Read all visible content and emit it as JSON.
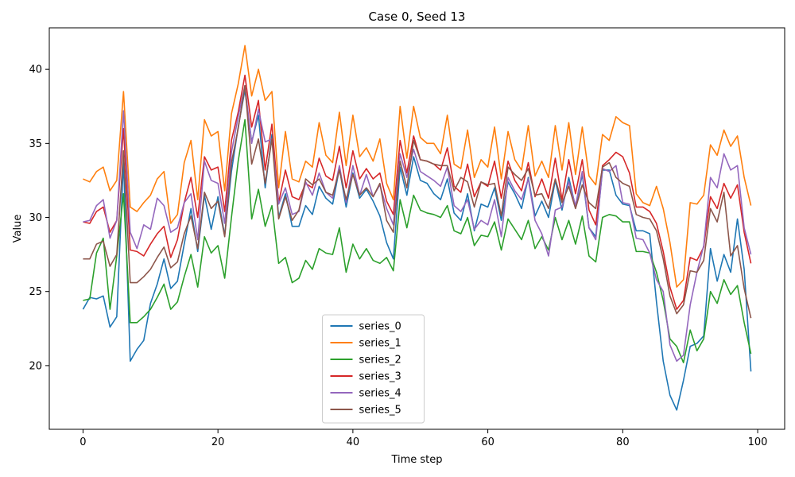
{
  "chart_data": {
    "type": "line",
    "title": "Case 0, Seed 13",
    "xlabel": "Time step",
    "ylabel": "Value",
    "xlim": [
      -5,
      104
    ],
    "ylim": [
      15.7,
      42.8
    ],
    "xticks": [
      0,
      20,
      40,
      60,
      80,
      100
    ],
    "yticks": [
      20,
      25,
      30,
      35,
      40
    ],
    "grid": false,
    "legend_position": "lower-center",
    "x": [
      0,
      1,
      2,
      3,
      4,
      5,
      6,
      7,
      8,
      9,
      10,
      11,
      12,
      13,
      14,
      15,
      16,
      17,
      18,
      19,
      20,
      21,
      22,
      23,
      24,
      25,
      26,
      27,
      28,
      29,
      30,
      31,
      32,
      33,
      34,
      35,
      36,
      37,
      38,
      39,
      40,
      41,
      42,
      43,
      44,
      45,
      46,
      47,
      48,
      49,
      50,
      51,
      52,
      53,
      54,
      55,
      56,
      57,
      58,
      59,
      60,
      61,
      62,
      63,
      64,
      65,
      66,
      67,
      68,
      69,
      70,
      71,
      72,
      73,
      74,
      75,
      76,
      77,
      78,
      79,
      80,
      81,
      82,
      83,
      84,
      85,
      86,
      87,
      88,
      89,
      90,
      91,
      92,
      93,
      94,
      95,
      96,
      97,
      98,
      99
    ],
    "series": [
      {
        "name": "series_0",
        "color": "#1f77b4",
        "values": [
          23.8,
          24.6,
          24.5,
          24.7,
          22.6,
          23.3,
          33.8,
          20.3,
          21.1,
          21.7,
          24.2,
          25.5,
          27.2,
          25.2,
          25.7,
          28.2,
          30.6,
          27.7,
          31.5,
          29.2,
          31.4,
          28.8,
          33.1,
          36.1,
          38.6,
          35.1,
          36.9,
          32.0,
          35.6,
          30.0,
          31.6,
          29.4,
          29.4,
          30.8,
          30.2,
          32.1,
          31.3,
          30.9,
          33.3,
          30.7,
          33.0,
          31.3,
          31.9,
          31.1,
          30.1,
          28.3,
          27.2,
          33.4,
          31.5,
          34.1,
          32.5,
          32.3,
          31.6,
          31.2,
          32.6,
          30.3,
          29.8,
          31.6,
          29.1,
          30.9,
          30.7,
          32.0,
          29.8,
          32.4,
          31.6,
          30.6,
          32.7,
          30.1,
          31.1,
          30.0,
          32.5,
          30.5,
          32.7,
          30.7,
          32.9,
          29.3,
          28.7,
          33.2,
          33.2,
          31.5,
          30.9,
          30.8,
          29.1,
          29.1,
          28.9,
          24.3,
          20.3,
          18.0,
          17.0,
          19.0,
          21.3,
          21.5,
          22.0,
          27.9,
          25.7,
          27.5,
          26.3,
          29.9,
          26.5,
          19.6
        ]
      },
      {
        "name": "series_1",
        "color": "#ff7f0e",
        "values": [
          32.6,
          32.4,
          33.1,
          33.4,
          31.8,
          32.5,
          38.5,
          30.7,
          30.4,
          31.0,
          31.5,
          32.6,
          33.1,
          29.6,
          30.2,
          33.7,
          35.2,
          31.2,
          36.6,
          35.5,
          35.8,
          31.8,
          37.0,
          39.0,
          41.6,
          38.2,
          40.0,
          37.9,
          38.5,
          32.0,
          35.8,
          32.6,
          32.4,
          33.8,
          33.4,
          36.4,
          34.2,
          33.7,
          37.1,
          33.5,
          36.9,
          34.1,
          34.7,
          33.8,
          35.3,
          32.3,
          31.2,
          37.5,
          34.0,
          37.5,
          35.4,
          35.0,
          35.0,
          34.3,
          36.9,
          33.6,
          33.3,
          35.9,
          32.7,
          33.9,
          33.4,
          36.1,
          32.6,
          35.8,
          33.9,
          33.2,
          36.2,
          32.8,
          33.8,
          32.7,
          36.2,
          33.2,
          36.4,
          32.9,
          36.1,
          32.8,
          32.2,
          35.6,
          35.2,
          36.8,
          36.4,
          36.2,
          31.6,
          31.0,
          30.8,
          32.1,
          30.6,
          28.3,
          25.3,
          25.8,
          31.0,
          30.9,
          31.5,
          34.9,
          34.2,
          35.9,
          34.8,
          35.5,
          32.7,
          30.8
        ]
      },
      {
        "name": "series_2",
        "color": "#2ca02c",
        "values": [
          24.4,
          24.5,
          27.6,
          28.6,
          23.8,
          27.4,
          31.6,
          22.9,
          22.9,
          23.3,
          23.8,
          24.6,
          25.5,
          23.8,
          24.3,
          26.0,
          27.5,
          25.3,
          28.7,
          27.6,
          28.1,
          25.9,
          30.0,
          33.8,
          36.6,
          29.9,
          31.9,
          29.4,
          30.8,
          26.9,
          27.3,
          25.6,
          25.9,
          27.1,
          26.5,
          27.9,
          27.6,
          27.5,
          29.3,
          26.3,
          28.2,
          27.2,
          27.9,
          27.1,
          26.9,
          27.3,
          26.4,
          31.2,
          29.3,
          31.5,
          30.5,
          30.3,
          30.2,
          30.0,
          30.8,
          29.1,
          28.9,
          30.0,
          28.1,
          28.8,
          28.7,
          29.7,
          27.8,
          29.9,
          29.2,
          28.5,
          29.8,
          27.9,
          28.7,
          27.8,
          30.0,
          28.5,
          29.8,
          28.2,
          30.1,
          27.4,
          27.0,
          30.0,
          30.2,
          30.1,
          29.7,
          29.7,
          27.7,
          27.7,
          27.6,
          26.3,
          24.4,
          21.8,
          21.3,
          20.2,
          22.4,
          21.0,
          21.8,
          25.0,
          24.2,
          25.8,
          24.8,
          25.4,
          22.9,
          20.8
        ]
      },
      {
        "name": "series_3",
        "color": "#d62728",
        "values": [
          29.7,
          29.6,
          30.4,
          30.7,
          29.0,
          29.8,
          36.0,
          27.8,
          27.7,
          27.4,
          28.2,
          28.9,
          29.4,
          27.3,
          28.5,
          31.0,
          32.7,
          30.0,
          34.1,
          33.2,
          33.4,
          30.4,
          35.2,
          37.1,
          39.6,
          36.1,
          37.9,
          33.2,
          36.3,
          31.0,
          33.2,
          31.4,
          31.2,
          32.3,
          32.0,
          34.0,
          32.8,
          32.5,
          34.8,
          32.0,
          34.5,
          32.6,
          33.3,
          32.6,
          33.0,
          31.1,
          30.2,
          35.2,
          33.0,
          35.5,
          33.9,
          33.8,
          33.6,
          33.2,
          34.7,
          32.1,
          31.7,
          33.6,
          31.4,
          32.4,
          32.1,
          33.8,
          31.3,
          33.8,
          32.5,
          31.8,
          33.7,
          31.4,
          32.6,
          31.3,
          34.0,
          31.2,
          33.9,
          31.6,
          33.9,
          30.5,
          29.5,
          33.5,
          33.9,
          34.4,
          34.1,
          33.0,
          30.7,
          30.7,
          30.4,
          29.6,
          27.7,
          25.3,
          23.8,
          24.4,
          27.3,
          27.1,
          28.0,
          31.4,
          30.6,
          32.3,
          31.3,
          32.2,
          29.0,
          26.9
        ]
      },
      {
        "name": "series_4",
        "color": "#9467bd",
        "values": [
          29.7,
          29.8,
          30.8,
          31.2,
          28.6,
          29.8,
          37.2,
          29.0,
          27.9,
          29.5,
          29.2,
          31.3,
          30.8,
          29.0,
          29.3,
          31.0,
          31.6,
          28.5,
          33.8,
          32.5,
          32.3,
          29.6,
          34.4,
          36.8,
          38.9,
          35.0,
          37.3,
          35.1,
          35.3,
          30.9,
          32.0,
          30.2,
          30.4,
          32.4,
          31.5,
          33.0,
          31.7,
          31.3,
          33.5,
          31.0,
          33.5,
          31.5,
          32.9,
          31.4,
          32.2,
          30.6,
          29.5,
          34.3,
          32.7,
          34.6,
          33.1,
          32.8,
          32.5,
          32.1,
          33.4,
          30.8,
          30.4,
          31.2,
          29.2,
          29.8,
          29.5,
          31.2,
          28.7,
          32.7,
          31.8,
          31.2,
          32.6,
          29.8,
          28.9,
          27.4,
          30.5,
          30.7,
          32.4,
          30.8,
          33.1,
          29.3,
          28.5,
          33.3,
          33.1,
          33.5,
          31.0,
          30.9,
          28.6,
          28.5,
          27.6,
          25.8,
          25.0,
          21.4,
          20.3,
          20.7,
          24.1,
          26.3,
          28.1,
          32.7,
          32.0,
          34.3,
          33.2,
          33.5,
          29.3,
          27.5
        ]
      },
      {
        "name": "series_5",
        "color": "#8c564b",
        "values": [
          27.2,
          27.2,
          28.2,
          28.4,
          26.7,
          27.5,
          34.5,
          25.6,
          25.6,
          26.0,
          26.5,
          27.3,
          28.0,
          26.6,
          27.0,
          28.9,
          30.1,
          27.9,
          31.7,
          30.6,
          31.1,
          28.7,
          33.7,
          36.0,
          38.9,
          33.6,
          35.3,
          32.3,
          35.3,
          29.9,
          31.4,
          29.8,
          30.5,
          32.6,
          32.2,
          32.6,
          31.7,
          31.5,
          33.2,
          31.2,
          32.9,
          31.5,
          32.0,
          31.4,
          32.3,
          29.8,
          29.0,
          33.8,
          32.0,
          35.2,
          33.9,
          33.8,
          33.6,
          33.5,
          33.5,
          31.8,
          32.7,
          32.4,
          30.7,
          32.4,
          32.2,
          32.3,
          30.1,
          33.4,
          32.9,
          32.5,
          33.3,
          31.5,
          31.6,
          30.6,
          32.6,
          31.0,
          32.1,
          30.6,
          32.2,
          31.0,
          30.6,
          33.4,
          33.7,
          32.7,
          32.3,
          32.1,
          30.2,
          30.0,
          29.9,
          29.1,
          27.2,
          24.7,
          23.5,
          24.1,
          26.4,
          26.3,
          27.1,
          30.6,
          29.7,
          31.7,
          27.4,
          28.1,
          25.2,
          23.2
        ]
      }
    ]
  }
}
